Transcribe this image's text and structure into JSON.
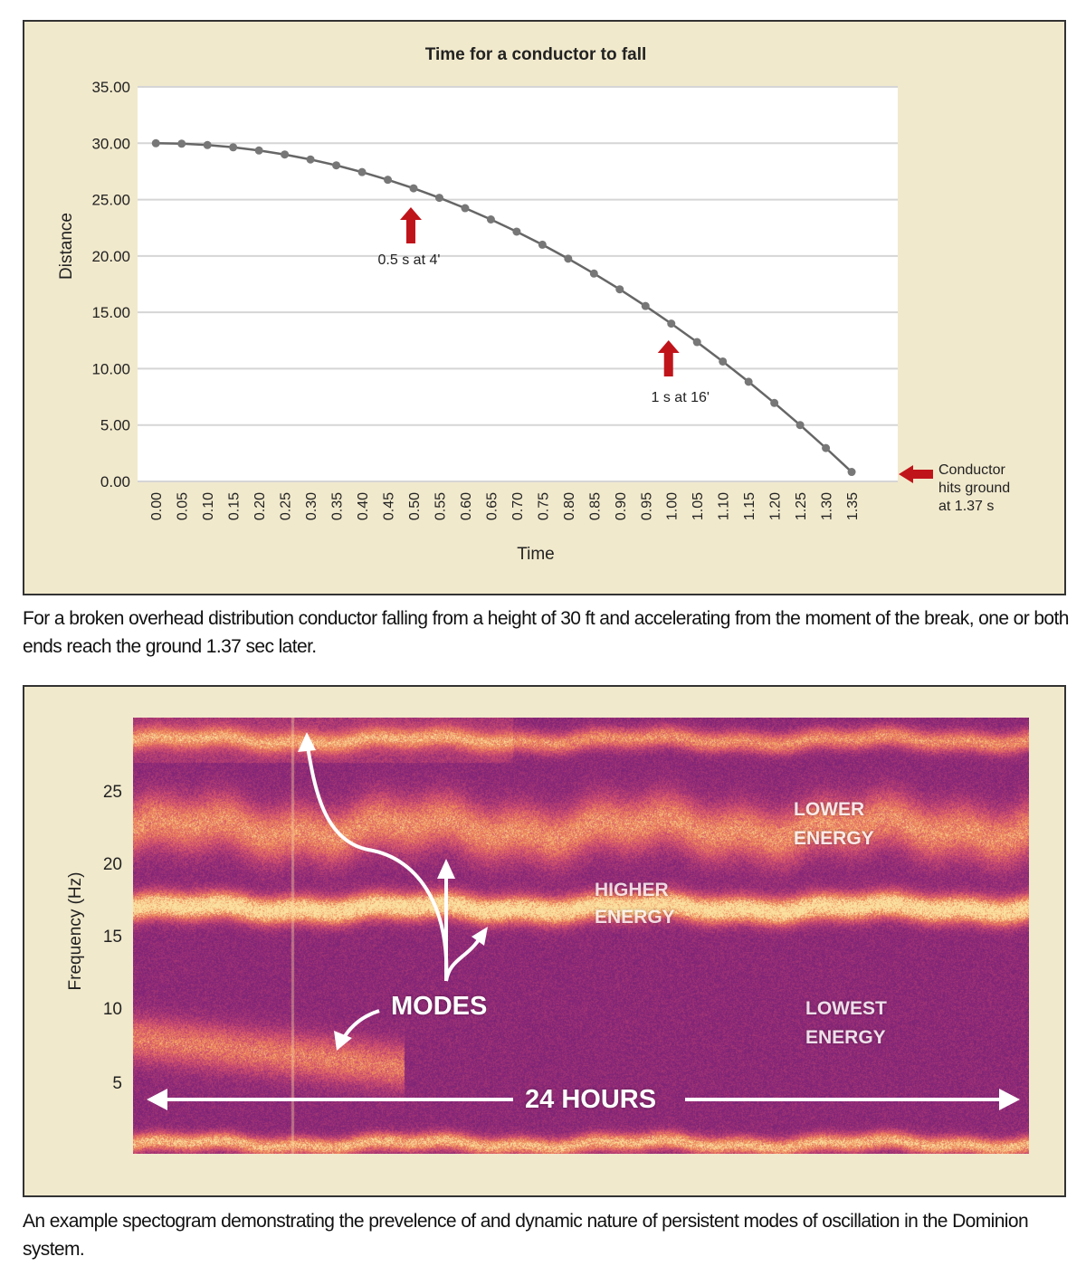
{
  "figure1": {
    "caption": "For a broken overhead distribution conductor falling from a height of 30 ft and accelerating from the moment of the break, one or both ends reach the ground 1.37 sec later."
  },
  "figure2": {
    "caption": "An example spectogram demonstrating the prevelence of and dynamic nature of persistent modes of oscillation in the Dominion system.",
    "ylabel": "Frequency (Hz)",
    "yticks": [
      "5",
      "10",
      "15",
      "20",
      "25"
    ],
    "labels": {
      "modes": "MODES",
      "higher": "HIGHER ENERGY",
      "lower": "LOWER ENERGY",
      "lowest": "LOWEST ENERGY",
      "duration": "24 HOURS"
    },
    "colors": {
      "low": "#6b1f78",
      "mid": "#e8734e",
      "high": "#f8e6a0"
    }
  },
  "chart_data": {
    "type": "line",
    "title": "Time for a conductor to fall",
    "xlabel": "Time",
    "ylabel": "Distance",
    "ylim": [
      0,
      35
    ],
    "yticks": [
      "0.00",
      "5.00",
      "10.00",
      "15.00",
      "20.00",
      "25.00",
      "30.00",
      "35.00"
    ],
    "x": [
      "0.00",
      "0.05",
      "0.10",
      "0.15",
      "0.20",
      "0.25",
      "0.30",
      "0.35",
      "0.40",
      "0.45",
      "0.50",
      "0.55",
      "0.60",
      "0.65",
      "0.70",
      "0.75",
      "0.80",
      "0.85",
      "0.90",
      "0.95",
      "1.00",
      "1.05",
      "1.10",
      "1.15",
      "1.20",
      "1.25",
      "1.30",
      "1.35"
    ],
    "values": [
      30,
      29.96,
      29.84,
      29.64,
      29.36,
      29.0,
      28.56,
      28.04,
      27.44,
      26.76,
      26.0,
      25.16,
      24.24,
      23.24,
      22.16,
      21.0,
      19.76,
      18.44,
      17.04,
      15.56,
      14.0,
      12.36,
      10.64,
      8.84,
      6.96,
      5.0,
      2.96,
      0.84
    ],
    "grid": true,
    "annotations": [
      {
        "text": "0.5 s at 4'",
        "x": "0.50"
      },
      {
        "text": "1 s at 16'",
        "x": "1.00"
      },
      {
        "text": "Conductor hits ground at 1.37 s",
        "x": "1.35"
      }
    ],
    "colors": {
      "line": "#666666",
      "arrow": "#c0141b",
      "plot_bg": "#ffffff",
      "frame_bg": "#f1e9cc"
    }
  }
}
